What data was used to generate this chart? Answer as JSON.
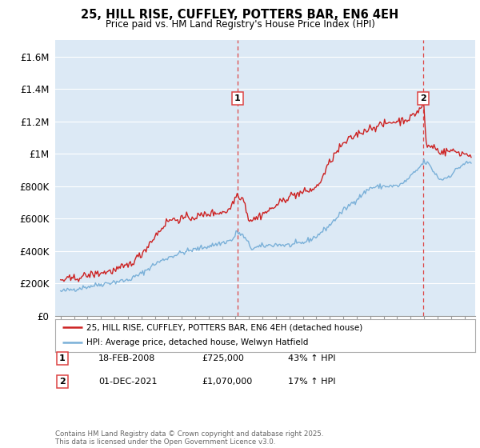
{
  "title": "25, HILL RISE, CUFFLEY, POTTERS BAR, EN6 4EH",
  "subtitle": "Price paid vs. HM Land Registry's House Price Index (HPI)",
  "bg_color": "#ffffff",
  "plot_bg_color": "#dce9f5",
  "grid_color": "#ffffff",
  "red_color": "#cc2222",
  "blue_color": "#7ab0d8",
  "dashed_color": "#dd4444",
  "ylim": [
    0,
    1700000
  ],
  "yticks": [
    0,
    200000,
    400000,
    600000,
    800000,
    1000000,
    1200000,
    1400000,
    1600000
  ],
  "ytick_labels": [
    "£0",
    "£200K",
    "£400K",
    "£600K",
    "£800K",
    "£1M",
    "£1.2M",
    "£1.4M",
    "£1.6M"
  ],
  "sale1_year": 2008.125,
  "sale1_price": 725000,
  "sale1_label": "1",
  "sale2_year": 2021.917,
  "sale2_price": 1070000,
  "sale2_label": "2",
  "legend_entry1": "25, HILL RISE, CUFFLEY, POTTERS BAR, EN6 4EH (detached house)",
  "legend_entry2": "HPI: Average price, detached house, Welwyn Hatfield",
  "note1_label": "1",
  "note1_date": "18-FEB-2008",
  "note1_price": "£725,000",
  "note1_hpi": "43% ↑ HPI",
  "note2_label": "2",
  "note2_date": "01-DEC-2021",
  "note2_price": "£1,070,000",
  "note2_hpi": "17% ↑ HPI",
  "footer": "Contains HM Land Registry data © Crown copyright and database right 2025.\nThis data is licensed under the Open Government Licence v3.0."
}
